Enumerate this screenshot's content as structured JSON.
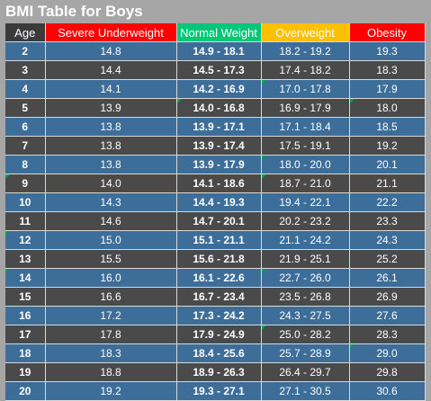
{
  "title": "BMI Table for Boys",
  "headers": {
    "age": "Age",
    "severe": "Severe Underweight",
    "normal": "Normal Weight",
    "over": "Overweight",
    "obesity": "Obesity"
  },
  "colors": {
    "severe": "#ff0000",
    "normal": "#00c878",
    "overweight": "#ffc000",
    "obesity": "#ff0000",
    "row_blue": "#3d6e99",
    "row_dark": "#4a4a4a",
    "background": "#a6a6a6"
  },
  "rows": [
    {
      "age": "2",
      "severe": "14.8",
      "normal": "14.9 - 18.1",
      "over": "18.2 - 19.2",
      "obesity": "19.3"
    },
    {
      "age": "3",
      "severe": "14.4",
      "normal": "14.5 - 17.3",
      "over": "17.4 - 18.2",
      "obesity": "18.3"
    },
    {
      "age": "4",
      "severe": "14.1",
      "normal": "14.2 - 16.9",
      "over": "17.0 - 17.8",
      "obesity": "17.9"
    },
    {
      "age": "5",
      "severe": "13.9",
      "normal": "14.0 - 16.8",
      "over": "16.9 - 17.9",
      "obesity": "18.0"
    },
    {
      "age": "6",
      "severe": "13.8",
      "normal": "13.9 - 17.1",
      "over": "17.1 - 18.4",
      "obesity": "18.5"
    },
    {
      "age": "7",
      "severe": "13.8",
      "normal": "13.9 - 17.4",
      "over": "17.5 - 19.1",
      "obesity": "19.2"
    },
    {
      "age": "8",
      "severe": "13.8",
      "normal": "13.9 - 17.9",
      "over": "18.0 - 20.0",
      "obesity": "20.1"
    },
    {
      "age": "9",
      "severe": "14.0",
      "normal": "14.1 - 18.6",
      "over": "18.7 - 21.0",
      "obesity": "21.1"
    },
    {
      "age": "10",
      "severe": "14.3",
      "normal": "14.4 - 19.3",
      "over": "19.4 - 22.1",
      "obesity": "22.2"
    },
    {
      "age": "11",
      "severe": "14.6",
      "normal": "14.7 - 20.1",
      "over": "20.2 - 23.2",
      "obesity": "23.3"
    },
    {
      "age": "12",
      "severe": "15.0",
      "normal": "15.1 - 21.1",
      "over": "21.1 - 24.2",
      "obesity": "24.3"
    },
    {
      "age": "13",
      "severe": "15.5",
      "normal": "15.6 - 21.8",
      "over": "21.9 - 25.1",
      "obesity": "25.2"
    },
    {
      "age": "14",
      "severe": "16.0",
      "normal": "16.1 - 22.6",
      "over": "22.7 - 26.0",
      "obesity": "26.1"
    },
    {
      "age": "15",
      "severe": "16.6",
      "normal": "16.7 - 23.4",
      "over": "23.5 - 26.8",
      "obesity": "26.9"
    },
    {
      "age": "16",
      "severe": "17.2",
      "normal": "17.3 - 24.2",
      "over": "24.3 - 27.5",
      "obesity": "27.6"
    },
    {
      "age": "17",
      "severe": "17.8",
      "normal": "17.9 - 24.9",
      "over": "25.0 - 28.2",
      "obesity": "28.3"
    },
    {
      "age": "18",
      "severe": "18.3",
      "normal": "18.4 - 25.6",
      "over": "25.7 - 28.9",
      "obesity": "29.0"
    },
    {
      "age": "19",
      "severe": "18.8",
      "normal": "18.9 - 26.3",
      "over": "26.4 - 29.7",
      "obesity": "29.8"
    },
    {
      "age": "20",
      "severe": "19.2",
      "normal": "19.3 - 27.1",
      "over": "27.1 - 30.5",
      "obesity": "30.6"
    }
  ]
}
